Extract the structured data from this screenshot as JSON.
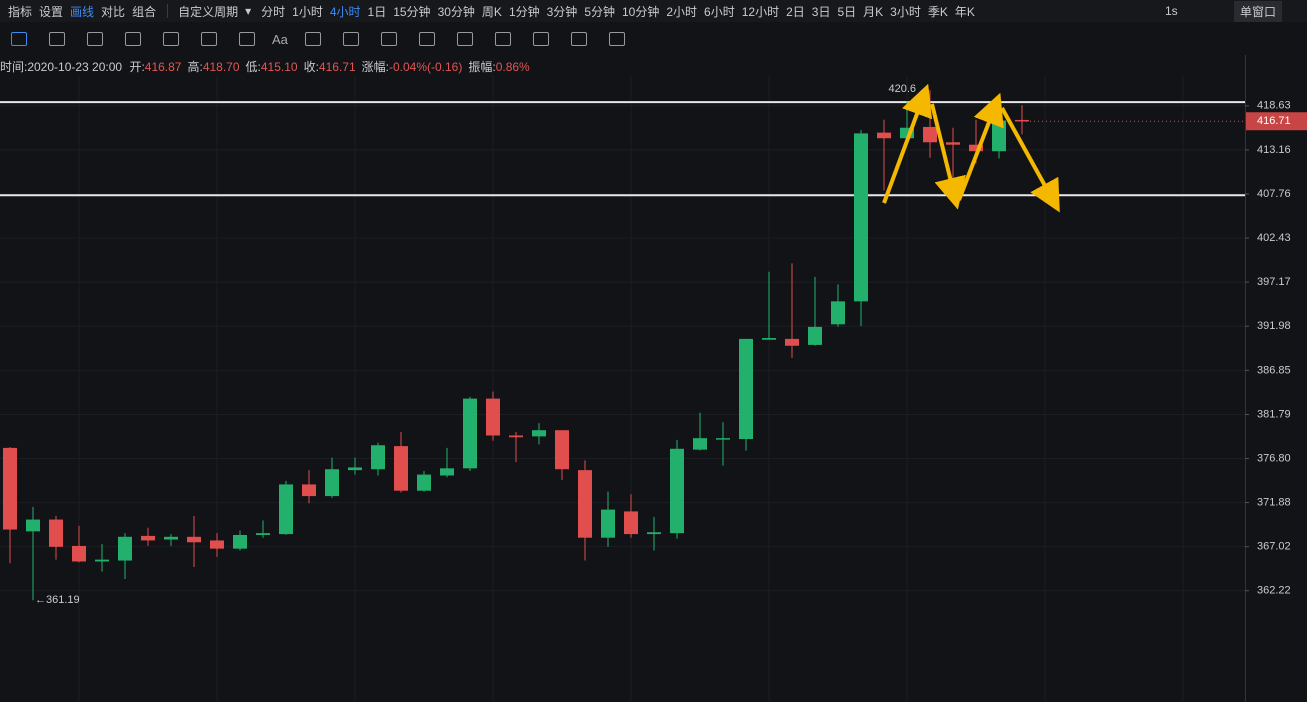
{
  "toolbar": {
    "left": [
      "指标",
      "设置",
      "画线",
      "对比",
      "组合"
    ],
    "period_menu": "自定义周期",
    "periods": [
      "分时",
      "1小时",
      "4小时",
      "1日",
      "15分钟",
      "30分钟",
      "周K",
      "1分钟",
      "3分钟",
      "5分钟",
      "10分钟",
      "2小时",
      "6小时",
      "12小时",
      "2日",
      "3日",
      "5日",
      "月K",
      "3小时",
      "季K",
      "年K"
    ],
    "interval": "1s",
    "window": "单窗口",
    "text_tool": "Aa"
  },
  "info": {
    "time": "时间:2020-10-23 20:00",
    "items": [
      {
        "label": "开:",
        "value": "416.87"
      },
      {
        "label": "高:",
        "value": "418.70"
      },
      {
        "label": "低:",
        "value": "415.10"
      },
      {
        "label": "收:",
        "value": "416.71"
      },
      {
        "label": "涨幅:",
        "value": "-0.04%(-0.16)"
      },
      {
        "label": "振幅:",
        "value": "0.86%"
      }
    ]
  },
  "chart_data": {
    "type": "candlestick",
    "categories": [
      null,
      null,
      null,
      null,
      null,
      null,
      null,
      null,
      null,
      null,
      null,
      null,
      null,
      null,
      null,
      null,
      null,
      null,
      null,
      null,
      null,
      null,
      null,
      null,
      null,
      null,
      null,
      null,
      null,
      null,
      null,
      null,
      null,
      null,
      null,
      null,
      null,
      null,
      null,
      null,
      null,
      null,
      null,
      null,
      null
    ],
    "open": [
      378.0,
      368.7,
      370.0,
      367.1,
      365.4,
      365.5,
      368.2,
      367.8,
      368.1,
      367.7,
      366.8,
      368.3,
      368.4,
      373.9,
      372.6,
      375.5,
      375.6,
      378.2,
      373.2,
      374.9,
      375.7,
      383.6,
      379.4,
      379.3,
      380.0,
      375.5,
      368.0,
      370.9,
      368.4,
      368.5,
      377.8,
      379.0,
      379.0,
      390.4,
      390.5,
      389.8,
      392.2,
      394.9,
      415.3,
      414.6,
      416.0,
      414.1,
      413.8,
      413.0,
      416.87
    ],
    "high": [
      378.1,
      371.4,
      370.4,
      369.3,
      367.3,
      368.5,
      369.1,
      368.4,
      370.4,
      368.5,
      368.8,
      369.9,
      374.3,
      375.5,
      376.9,
      376.9,
      378.6,
      379.8,
      375.4,
      378.0,
      383.8,
      384.4,
      379.8,
      380.8,
      380.0,
      376.6,
      373.1,
      372.8,
      370.3,
      378.9,
      382.0,
      380.9,
      390.5,
      398.4,
      399.4,
      397.8,
      396.9,
      415.6,
      416.9,
      419.2,
      420.6,
      415.9,
      416.9,
      418.0,
      418.7
    ],
    "low": [
      365.2,
      361.19,
      365.6,
      365.3,
      364.3,
      363.5,
      367.1,
      367.1,
      364.8,
      365.9,
      366.6,
      368.0,
      368.3,
      371.8,
      372.4,
      375.0,
      374.9,
      373.0,
      373.1,
      374.7,
      375.4,
      378.8,
      376.4,
      378.4,
      374.4,
      365.5,
      367.0,
      368.0,
      366.6,
      367.9,
      377.7,
      376.0,
      377.7,
      390.4,
      388.3,
      389.7,
      391.9,
      392.0,
      408.2,
      414.5,
      412.2,
      409.2,
      411.5,
      412.1,
      415.1
    ],
    "close": [
      368.9,
      370.0,
      367.0,
      365.4,
      365.6,
      368.1,
      367.7,
      368.1,
      367.5,
      366.8,
      368.3,
      368.5,
      373.9,
      372.6,
      375.6,
      375.8,
      378.3,
      373.2,
      375.0,
      375.7,
      383.6,
      379.4,
      379.2,
      380.0,
      375.6,
      368.0,
      371.1,
      368.4,
      368.6,
      377.9,
      379.1,
      379.1,
      390.5,
      390.6,
      389.7,
      391.9,
      394.9,
      415.2,
      414.6,
      415.9,
      414.1,
      413.8,
      413.0,
      416.8,
      416.71
    ],
    "up_color": "#22b06c",
    "down_color": "#e04e4e",
    "ylim": [
      350.6,
      422.5
    ],
    "log_scale": true,
    "yticks": [
      418.63,
      413.16,
      407.76,
      402.43,
      397.17,
      391.98,
      386.85,
      381.79,
      {
        "value": 376.8,
        "label": "376.80"
      },
      371.88,
      367.02,
      362.22
    ],
    "grid": true,
    "hlines": [
      419.1,
      407.6
    ],
    "max_label": "420.6",
    "min_label": "361.19",
    "last_price_label": "416.71"
  }
}
